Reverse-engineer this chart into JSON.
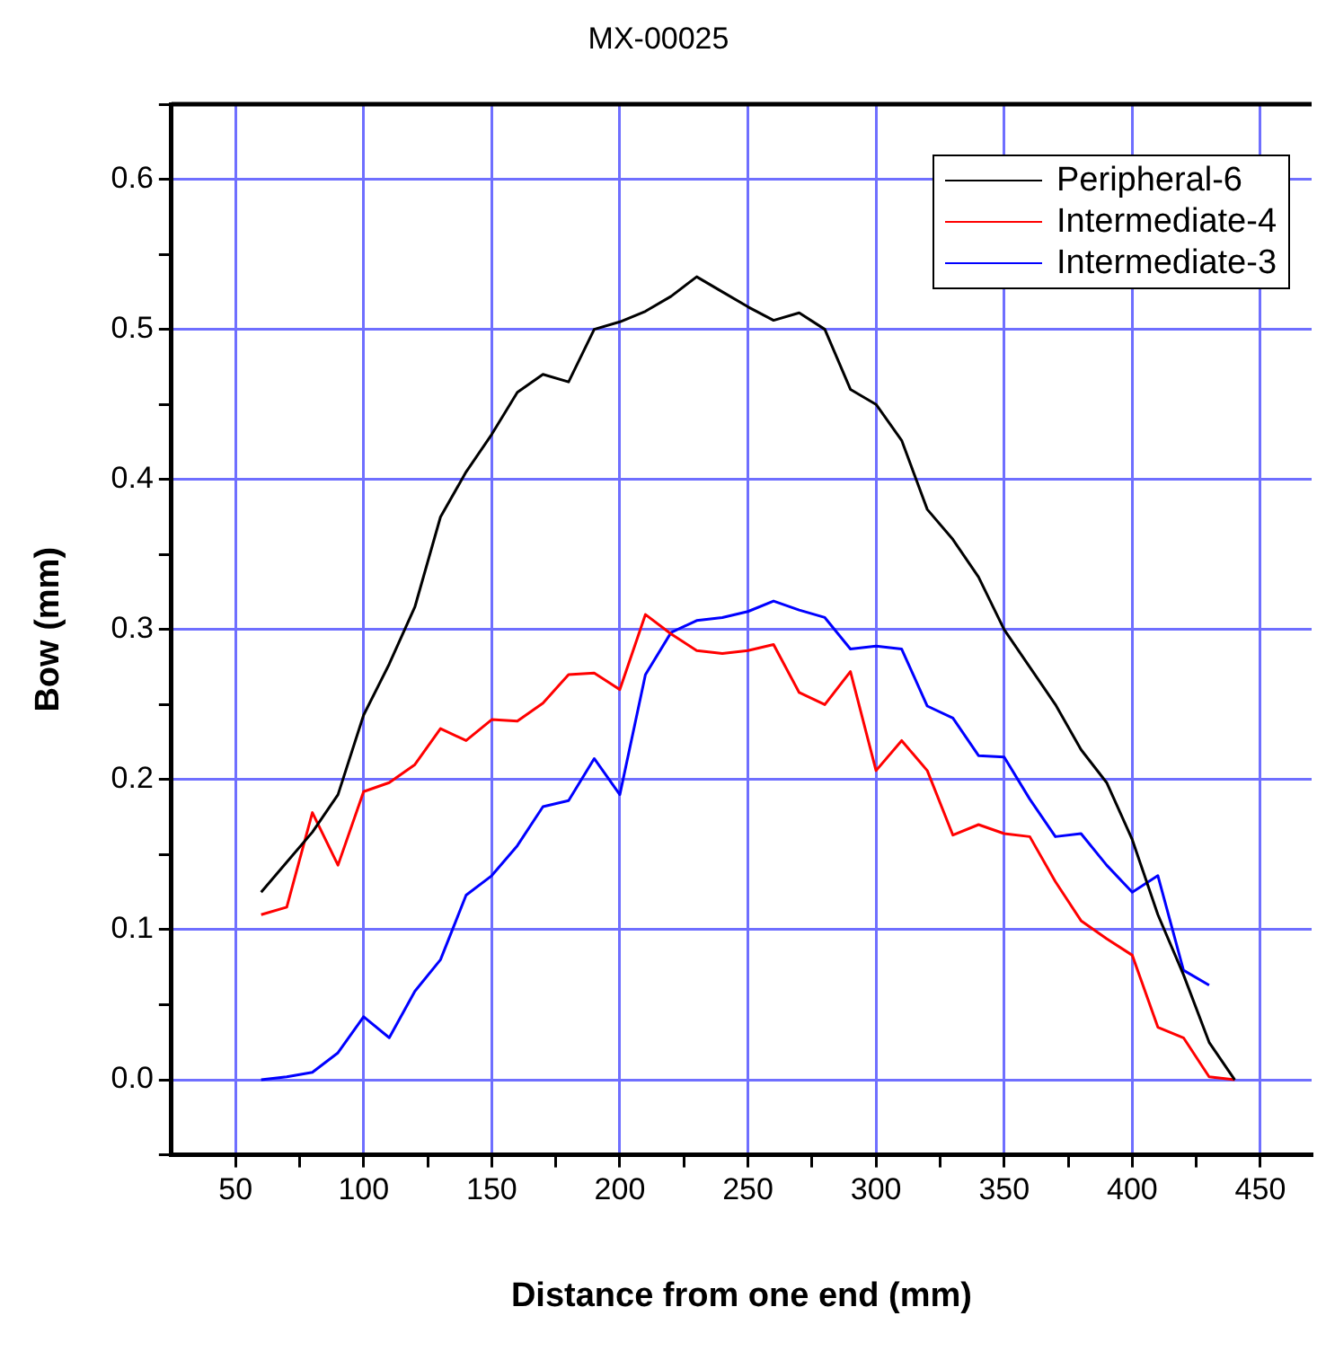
{
  "chart_data": {
    "type": "line",
    "title": "MX-00025",
    "xlabel": "Distance from one end (mm)",
    "ylabel": "Bow (mm)",
    "x": [
      60,
      70,
      80,
      90,
      100,
      110,
      120,
      130,
      140,
      150,
      160,
      170,
      180,
      190,
      200,
      210,
      220,
      230,
      240,
      250,
      260,
      270,
      280,
      290,
      300,
      310,
      320,
      330,
      340,
      350,
      360,
      370,
      380,
      390,
      400,
      410,
      420,
      430,
      440
    ],
    "series": [
      {
        "name": "Peripheral-6",
        "color": "#000000",
        "values": [
          0.125,
          0.145,
          0.165,
          0.19,
          0.243,
          0.277,
          0.315,
          0.375,
          0.405,
          0.43,
          0.458,
          0.47,
          0.465,
          0.5,
          0.505,
          0.512,
          0.522,
          0.535,
          0.525,
          0.515,
          0.506,
          0.511,
          0.5,
          0.46,
          0.45,
          0.426,
          0.38,
          0.36,
          0.335,
          0.3,
          0.275,
          0.25,
          0.22,
          0.198,
          0.16,
          0.11,
          0.07,
          0.025,
          0.0
        ]
      },
      {
        "name": "Intermediate-4",
        "color": "#ff0000",
        "values": [
          0.11,
          0.115,
          0.178,
          0.143,
          0.192,
          0.198,
          0.21,
          0.234,
          0.226,
          0.24,
          0.239,
          0.251,
          0.27,
          0.271,
          0.26,
          0.31,
          0.297,
          0.286,
          0.284,
          0.286,
          0.29,
          0.258,
          0.25,
          0.272,
          0.206,
          0.226,
          0.206,
          0.163,
          0.17,
          0.164,
          0.162,
          0.132,
          0.106,
          0.094,
          0.083,
          0.035,
          0.028,
          0.002,
          0.0
        ]
      },
      {
        "name": "Intermediate-3",
        "color": "#0000ff",
        "values": [
          0.0,
          0.002,
          0.005,
          0.018,
          0.042,
          0.028,
          0.059,
          0.08,
          0.123,
          0.136,
          0.156,
          0.182,
          0.186,
          0.214,
          0.19,
          0.27,
          0.298,
          0.306,
          0.308,
          0.312,
          0.319,
          0.313,
          0.308,
          0.287,
          0.289,
          0.287,
          0.249,
          0.241,
          0.216,
          0.215,
          0.187,
          0.162,
          0.164,
          0.143,
          0.125,
          0.136,
          0.073,
          0.063,
          null
        ]
      }
    ],
    "xlim": [
      25,
      470
    ],
    "xticks": [
      50,
      {
        "value": 75,
        "label": null
      },
      100,
      {
        "value": 125,
        "label": null
      },
      150,
      {
        "value": 175,
        "label": null
      },
      200,
      {
        "value": 225,
        "label": null
      },
      250,
      {
        "value": 275,
        "label": null
      },
      300,
      {
        "value": 325,
        "label": null
      },
      350,
      {
        "value": 375,
        "label": null
      },
      400,
      {
        "value": 425,
        "label": null
      },
      450
    ],
    "ylim": [
      -0.05,
      0.65
    ],
    "yticks": [
      {
        "value": -0.05,
        "label": null
      },
      {
        "value": 0,
        "label": "0.0"
      },
      {
        "value": 0.05,
        "label": null
      },
      0.1,
      {
        "value": 0.15,
        "label": null
      },
      0.2,
      {
        "value": 0.25,
        "label": null
      },
      0.3,
      {
        "value": 0.35,
        "label": null
      },
      0.4,
      {
        "value": 0.45,
        "label": null
      },
      0.5,
      {
        "value": 0.55,
        "label": null
      },
      0.6,
      {
        "value": 0.65,
        "label": null
      }
    ],
    "grid": true,
    "legend": "top right",
    "marker": "none",
    "line_style": "solid"
  }
}
